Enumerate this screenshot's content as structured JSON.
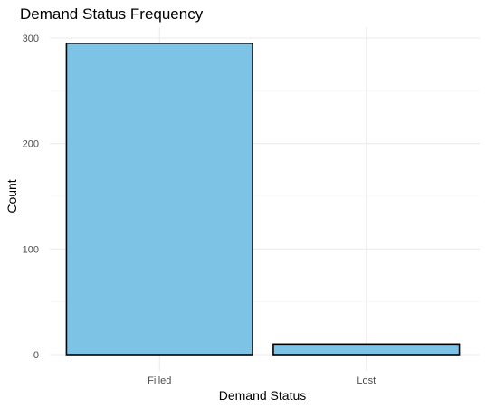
{
  "chart_data": {
    "type": "bar",
    "title": "Demand Status Frequency",
    "xlabel": "Demand Status",
    "ylabel": "Count",
    "categories": [
      "Filled",
      "Lost"
    ],
    "values": [
      295,
      10
    ],
    "ylim": [
      0,
      315
    ],
    "yticks": [
      0,
      100,
      200,
      300
    ],
    "grid": true,
    "legend": "none",
    "colors": {
      "bar_fill": "#7cc3e6",
      "bar_stroke": "#000000"
    }
  }
}
